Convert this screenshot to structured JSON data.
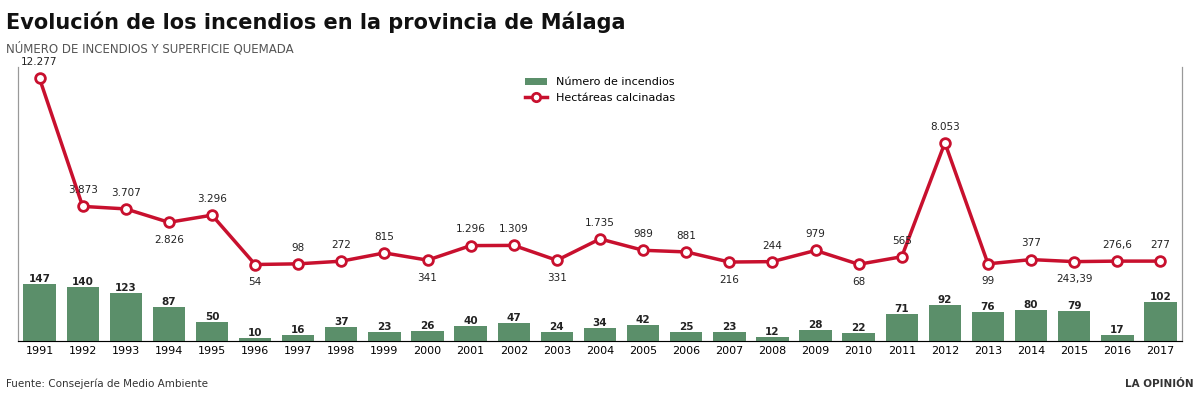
{
  "chart_data": {
    "type": "bar",
    "title": "Evolución de los incendios en la provincia de Málaga",
    "subtitle": "NÚMERO DE INCENDIOS Y SUPERFICIE QUEMADA",
    "source": "Fuente: Consejería de Medio Ambiente",
    "credit": "LA OPINIÓN",
    "categories": [
      "1991",
      "1992",
      "1993",
      "1994",
      "1995",
      "1996",
      "1997",
      "1998",
      "1999",
      "2000",
      "2001",
      "2002",
      "2003",
      "2004",
      "2005",
      "2006",
      "2007",
      "2008",
      "2009",
      "2010",
      "2011",
      "2012",
      "2013",
      "2014",
      "2015",
      "2016",
      "2017"
    ],
    "ylim": [
      0,
      700
    ],
    "y2lim": [
      -5000,
      13000
    ],
    "tick_labels": "x",
    "legend": "upper center",
    "data_labels": true,
    "series": [
      {
        "name": "Número de incendios",
        "type": "bar",
        "color": "#5b8f6a",
        "values": [
          147,
          140,
          123,
          87,
          50,
          10,
          16,
          37,
          23,
          26,
          40,
          47,
          24,
          34,
          42,
          25,
          23,
          12,
          28,
          22,
          71,
          92,
          76,
          80,
          79,
          17,
          102
        ]
      },
      {
        "name": "Hectáreas calcinadas",
        "type": "line",
        "axis": "y2",
        "color": "#c8102e",
        "marker": "o",
        "line_style": "solid",
        "values": [
          12277,
          3873,
          3707,
          2826,
          3296,
          54,
          98,
          272,
          815,
          341,
          1296,
          1309,
          331,
          1735,
          989,
          881,
          216,
          244,
          979,
          68,
          565,
          8053,
          99,
          377,
          243.39,
          276.6,
          277
        ],
        "value_labels": [
          "12.277",
          "3.873",
          "3.707",
          "2.826",
          "3.296",
          "54",
          "98",
          "272",
          "815",
          "341",
          "1.296",
          "1.309",
          "331",
          "1.735",
          "989",
          "881",
          "216",
          "244",
          "979",
          "68",
          "565",
          "8.053",
          "99",
          "377",
          "243,39",
          "276,6",
          "277"
        ]
      }
    ]
  }
}
